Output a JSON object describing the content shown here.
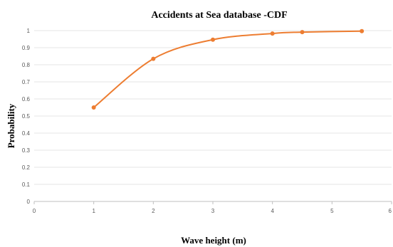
{
  "chart_data": {
    "type": "line",
    "title": "Accidents at Sea database -CDF",
    "xlabel": "Wave height (m)",
    "ylabel": "Probability",
    "xlim": [
      0,
      6
    ],
    "ylim": [
      0,
      1
    ],
    "xticks": [
      "0",
      "1",
      "2",
      "3",
      "4",
      "5",
      "6"
    ],
    "yticks": [
      "0",
      "0.1",
      "0.2",
      "0.3",
      "0.4",
      "0.5",
      "0.6",
      "0.7",
      "0.8",
      "0.9",
      "1"
    ],
    "grid": true,
    "smooth": true,
    "series": [
      {
        "color": "#ED7D31",
        "x": [
          1,
          2,
          3,
          4,
          4.5,
          5.5
        ],
        "y": [
          0.55,
          0.835,
          0.947,
          0.983,
          0.991,
          0.997
        ]
      }
    ]
  }
}
